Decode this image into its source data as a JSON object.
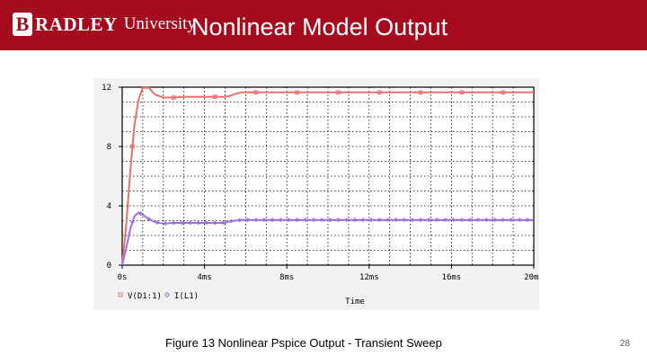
{
  "header": {
    "logo_initial": "B",
    "logo_word": "RADLEY",
    "logo_word2": "University",
    "title": "Nonlinear Model Output"
  },
  "chart_data": {
    "type": "line",
    "title": "",
    "xlabel": "Time",
    "ylabel": "",
    "xlim": [
      0,
      20
    ],
    "ylim": [
      0,
      12
    ],
    "x_unit": "ms",
    "x_ticks": [
      0,
      4,
      8,
      12,
      16,
      20
    ],
    "x_tick_labels": [
      "0s",
      "4ms",
      "8ms",
      "12ms",
      "16ms",
      "20ms"
    ],
    "y_ticks": [
      0,
      4,
      8,
      12
    ],
    "y_tick_labels": [
      "0",
      "4",
      "8",
      "12"
    ],
    "grid": true,
    "legend_position": "bottom-left",
    "series": [
      {
        "name": "V(D1:1)",
        "marker": "square",
        "color": "#e8706e",
        "x": [
          0,
          0.2,
          0.4,
          0.6,
          0.8,
          1.0,
          1.3,
          1.6,
          2.0,
          2.5,
          3.0,
          3.5,
          4.0,
          4.5,
          5.0,
          5.2,
          5.5,
          5.8,
          6.0,
          8.0,
          12.0,
          16.0,
          20.0
        ],
        "values": [
          0,
          2.8,
          6.5,
          9.5,
          11.2,
          11.95,
          11.95,
          11.5,
          11.3,
          11.3,
          11.35,
          11.35,
          11.35,
          11.35,
          11.35,
          11.4,
          11.55,
          11.65,
          11.65,
          11.65,
          11.65,
          11.65,
          11.65
        ]
      },
      {
        "name": "I(L1)",
        "marker": "diamond",
        "color": "#9c6fe0",
        "x": [
          0,
          0.2,
          0.4,
          0.6,
          0.8,
          1.0,
          1.3,
          1.6,
          2.0,
          2.5,
          3.0,
          3.5,
          4.0,
          4.5,
          5.0,
          5.2,
          5.5,
          5.8,
          6.0,
          8.0,
          12.0,
          16.0,
          20.0
        ],
        "values": [
          0,
          1.2,
          2.5,
          3.3,
          3.55,
          3.4,
          3.1,
          2.9,
          2.8,
          2.85,
          2.85,
          2.85,
          2.85,
          2.85,
          2.85,
          2.95,
          3.0,
          3.05,
          3.05,
          3.05,
          3.05,
          3.05,
          3.05
        ]
      }
    ]
  },
  "caption": "Figure 13 Nonlinear Pspice Output - Transient Sweep",
  "page_number": "28"
}
